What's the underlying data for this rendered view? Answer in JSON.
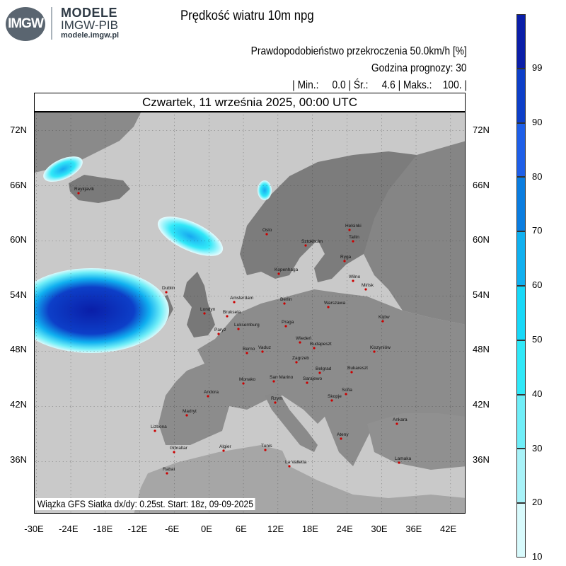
{
  "logo": {
    "badge": "IMGW",
    "line1": "MODELE",
    "line2": "IMGW-PIB",
    "line3": "modele.imgw.pl"
  },
  "title": "Prędkość wiatru 10m npg",
  "subtitle_prob": "Prawdopodobieństwo przekroczenia 50.0km/h [%]",
  "forecast_hour": "Godzina prognozy: 30",
  "stats": "| Min.:     0.0 | Śr.:     4.6 | Maks.:    100. |",
  "date_header": "Czwartek, 11 września 2025, 00:00 UTC",
  "footer_note": "Wiązka GFS Siatka dx/dy: 0.25st. Start: 18z, 09-09-2025",
  "lat_labels": [
    "72N",
    "66N",
    "60N",
    "54N",
    "48N",
    "42N",
    "36N"
  ],
  "lon_labels": [
    "-30E",
    "-24E",
    "-18E",
    "-12E",
    "-6E",
    "0E",
    "6E",
    "12E",
    "18E",
    "24E",
    "30E",
    "36E",
    "42E"
  ],
  "colorbar": {
    "labels": [
      "99",
      "90",
      "80",
      "70",
      "60",
      "50",
      "40",
      "30",
      "20",
      "10"
    ],
    "colors": [
      "#0a1ea8",
      "#0d3fc8",
      "#1e5fe8",
      "#0a7de0",
      "#10b0f0",
      "#18d8f8",
      "#30e8f8",
      "#70eef8",
      "#a8f2f8",
      "#d8fafc",
      "#f0fcfe"
    ]
  },
  "cities": [
    {
      "name": "Reykjavík"
    },
    {
      "name": "Oslo"
    },
    {
      "name": "Sztokholm"
    },
    {
      "name": "Helsinki"
    },
    {
      "name": "Tallin"
    },
    {
      "name": "Ryga"
    },
    {
      "name": "Kopenhaga"
    },
    {
      "name": "Wilno"
    },
    {
      "name": "Mińsk"
    },
    {
      "name": "Dublin"
    },
    {
      "name": "Londyn"
    },
    {
      "name": "Amsterdam"
    },
    {
      "name": "Bruksela"
    },
    {
      "name": "Luksemburg"
    },
    {
      "name": "Paryż"
    },
    {
      "name": "Berlin"
    },
    {
      "name": "Warszawa"
    },
    {
      "name": "Praga"
    },
    {
      "name": "Kijów"
    },
    {
      "name": "Berno"
    },
    {
      "name": "Vaduz"
    },
    {
      "name": "Wiedeń"
    },
    {
      "name": "Budapeszt"
    },
    {
      "name": "Kiszyniów"
    },
    {
      "name": "Zagrzeb"
    },
    {
      "name": "Belgrad"
    },
    {
      "name": "Bukareszt"
    },
    {
      "name": "Monako"
    },
    {
      "name": "San Marino"
    },
    {
      "name": "Sarajewo"
    },
    {
      "name": "Andora"
    },
    {
      "name": "Rzym"
    },
    {
      "name": "Sofia"
    },
    {
      "name": "Skopje"
    },
    {
      "name": "Madryt"
    },
    {
      "name": "Lizbona"
    },
    {
      "name": "Ateny"
    },
    {
      "name": "Ankara"
    },
    {
      "name": "Gibraltar"
    },
    {
      "name": "Algier"
    },
    {
      "name": "Tunis"
    },
    {
      "name": "La Valletta"
    },
    {
      "name": "Rabat"
    },
    {
      "name": "Lamaka"
    }
  ]
}
